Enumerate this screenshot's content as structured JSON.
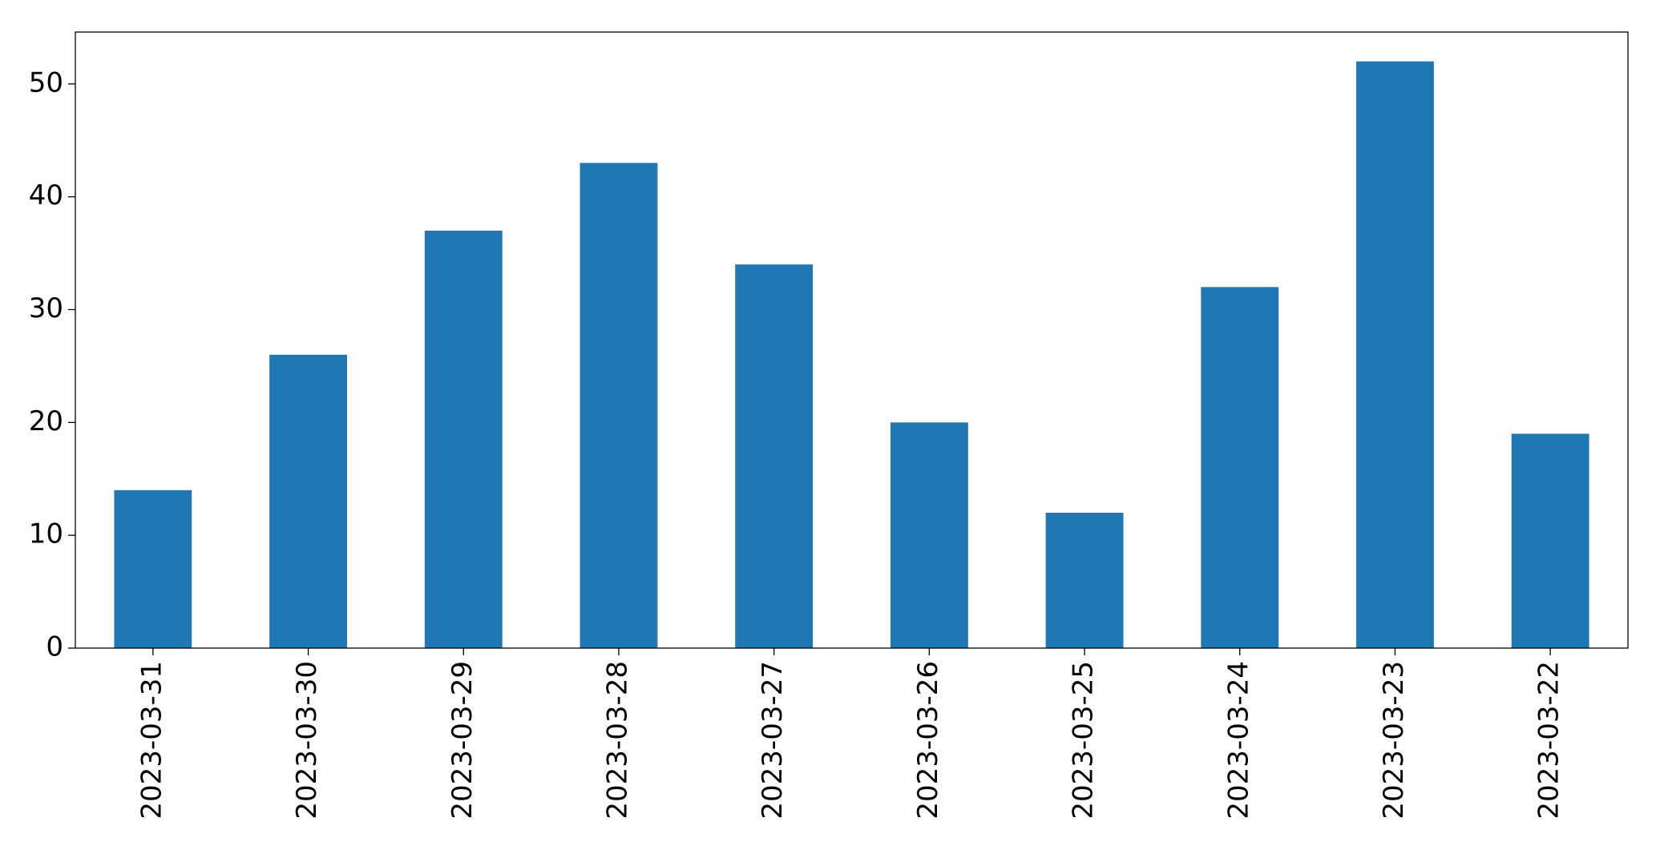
{
  "chart_data": {
    "type": "bar",
    "categories": [
      "2023-03-31",
      "2023-03-30",
      "2023-03-29",
      "2023-03-28",
      "2023-03-27",
      "2023-03-26",
      "2023-03-25",
      "2023-03-24",
      "2023-03-23",
      "2023-03-22"
    ],
    "values": [
      14,
      26,
      37,
      43,
      34,
      20,
      12,
      32,
      52,
      19
    ],
    "color": "#1f77b4",
    "ylim": [
      0,
      54.6
    ],
    "yticks": [
      0,
      10,
      20,
      30,
      40,
      50
    ],
    "grid": false
  }
}
